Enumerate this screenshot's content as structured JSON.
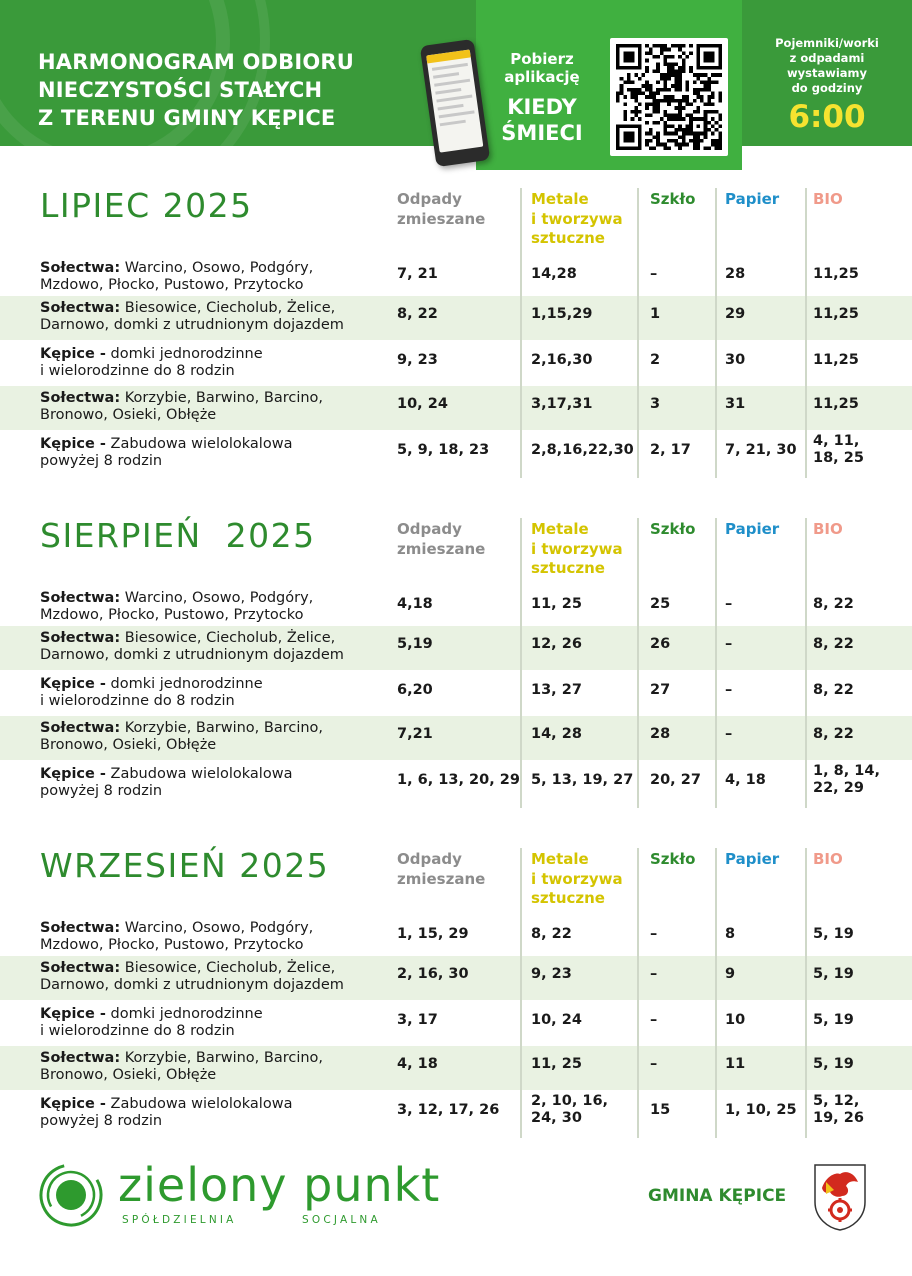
{
  "header": {
    "title_lines": [
      "HARMONOGRAM ODBIORU",
      "NIECZYSTOŚCI STAŁYCH",
      "Z TERENU GMINY KĘPICE"
    ],
    "app_prompt_line1": "Pobierz",
    "app_prompt_line2": "aplikację",
    "app_name_line1": "KIEDY",
    "app_name_line2": "ŚMIECI",
    "pickup_lines": [
      "Pojemniki/worki",
      "z odpadami",
      "wystawiamy",
      "do godziny"
    ],
    "pickup_time": "6:00"
  },
  "columns": {
    "mixed": [
      "Odpady",
      "zmieszane"
    ],
    "metals": [
      "Metale",
      "i tworzywa",
      "sztuczne"
    ],
    "glass": [
      "Szkło"
    ],
    "paper": [
      "Papier"
    ],
    "bio": [
      "BIO"
    ]
  },
  "colors": {
    "header_green": "#3a9a3a",
    "app_green": "#40b040",
    "title_green": "#2e8b2e",
    "mixed": "#8c8c8c",
    "metals": "#d4c400",
    "glass": "#2e8b2e",
    "paper": "#1f8fc9",
    "bio": "#f09a8a",
    "time_yellow": "#f5e330",
    "row_shade": "#e9f2e2"
  },
  "months": [
    {
      "title": "LIPIEC 2025",
      "rows": [
        {
          "loc_bold": "Sołectwa:",
          "loc1": " Warcino, Osowo, Podgóry,",
          "loc2": "Mzdowo, Płocko, Pustowo, Przytocko",
          "mixed": [
            "7, 21"
          ],
          "metals": [
            "14,28"
          ],
          "glass": [
            "–"
          ],
          "paper": [
            "28"
          ],
          "bio": [
            "11,25"
          ]
        },
        {
          "loc_bold": "Sołectwa:",
          "loc1": " Biesowice, Ciecholub, Żelice,",
          "loc2": "Darnowo, domki z utrudnionym dojazdem",
          "mixed": [
            "8, 22"
          ],
          "metals": [
            "1,15,29"
          ],
          "glass": [
            "1"
          ],
          "paper": [
            "29"
          ],
          "bio": [
            "11,25"
          ]
        },
        {
          "loc_bold": "Kępice -",
          "loc1": " domki jednorodzinne",
          "loc2": "i wielorodzinne do 8 rodzin",
          "mixed": [
            "9, 23"
          ],
          "metals": [
            "2,16,30"
          ],
          "glass": [
            "2"
          ],
          "paper": [
            "30"
          ],
          "bio": [
            "11,25"
          ]
        },
        {
          "loc_bold": "Sołectwa:",
          "loc1": " Korzybie, Barwino, Barcino,",
          "loc2": "Bronowo, Osieki, Obłęże",
          "mixed": [
            "10, 24"
          ],
          "metals": [
            "3,17,31"
          ],
          "glass": [
            "3"
          ],
          "paper": [
            "31"
          ],
          "bio": [
            "11,25"
          ]
        },
        {
          "loc_bold": "Kępice -",
          "loc1": " Zabudowa wielolokalowa",
          "loc2": "powyżej 8 rodzin",
          "mixed": [
            "5, 9, 18, 23"
          ],
          "metals": [
            "2,8,16,22,30"
          ],
          "glass": [
            "2, 17"
          ],
          "paper": [
            "7, 21, 30"
          ],
          "bio": [
            "4, 11,",
            "18, 25"
          ]
        }
      ]
    },
    {
      "title": "SIERPIEŃ  2025",
      "rows": [
        {
          "loc_bold": "Sołectwa:",
          "loc1": " Warcino, Osowo, Podgóry,",
          "loc2": "Mzdowo, Płocko, Pustowo, Przytocko",
          "mixed": [
            "4,18"
          ],
          "metals": [
            "11, 25"
          ],
          "glass": [
            "25"
          ],
          "paper": [
            "–"
          ],
          "bio": [
            "8, 22"
          ]
        },
        {
          "loc_bold": "Sołectwa:",
          "loc1": " Biesowice, Ciecholub, Żelice,",
          "loc2": "Darnowo, domki z utrudnionym dojazdem",
          "mixed": [
            "5,19"
          ],
          "metals": [
            "12, 26"
          ],
          "glass": [
            "26"
          ],
          "paper": [
            "–"
          ],
          "bio": [
            "8, 22"
          ]
        },
        {
          "loc_bold": "Kępice -",
          "loc1": " domki jednorodzinne",
          "loc2": "i wielorodzinne do 8 rodzin",
          "mixed": [
            "6,20"
          ],
          "metals": [
            "13, 27"
          ],
          "glass": [
            "27"
          ],
          "paper": [
            "–"
          ],
          "bio": [
            "8, 22"
          ]
        },
        {
          "loc_bold": "Sołectwa:",
          "loc1": " Korzybie, Barwino, Barcino,",
          "loc2": "Bronowo, Osieki, Obłęże",
          "mixed": [
            "7,21"
          ],
          "metals": [
            "14, 28"
          ],
          "glass": [
            "28"
          ],
          "paper": [
            "–"
          ],
          "bio": [
            "8, 22"
          ]
        },
        {
          "loc_bold": "Kępice -",
          "loc1": " Zabudowa wielolokalowa",
          "loc2": "powyżej 8 rodzin",
          "mixed": [
            "1, 6, 13, 20, 29"
          ],
          "metals": [
            "5, 13, 19, 27"
          ],
          "glass": [
            "20, 27"
          ],
          "paper": [
            "4, 18"
          ],
          "bio": [
            "1, 8, 14,",
            "22, 29"
          ]
        }
      ]
    },
    {
      "title": "WRZESIEŃ 2025",
      "rows": [
        {
          "loc_bold": "Sołectwa:",
          "loc1": " Warcino, Osowo, Podgóry,",
          "loc2": "Mzdowo, Płocko, Pustowo, Przytocko",
          "mixed": [
            "1, 15, 29"
          ],
          "metals": [
            "8, 22"
          ],
          "glass": [
            "–"
          ],
          "paper": [
            "8"
          ],
          "bio": [
            "5, 19"
          ]
        },
        {
          "loc_bold": "Sołectwa:",
          "loc1": " Biesowice, Ciecholub, Żelice,",
          "loc2": "Darnowo, domki z utrudnionym dojazdem",
          "mixed": [
            "2, 16, 30"
          ],
          "metals": [
            "9, 23"
          ],
          "glass": [
            "–"
          ],
          "paper": [
            "9"
          ],
          "bio": [
            "5, 19"
          ]
        },
        {
          "loc_bold": "Kępice -",
          "loc1": " domki jednorodzinne",
          "loc2": "i wielorodzinne do 8 rodzin",
          "mixed": [
            "3, 17"
          ],
          "metals": [
            "10, 24"
          ],
          "glass": [
            "–"
          ],
          "paper": [
            "10"
          ],
          "bio": [
            "5, 19"
          ]
        },
        {
          "loc_bold": "Sołectwa:",
          "loc1": " Korzybie, Barwino, Barcino,",
          "loc2": "Bronowo, Osieki, Obłęże",
          "mixed": [
            "4, 18"
          ],
          "metals": [
            "11, 25"
          ],
          "glass": [
            "–"
          ],
          "paper": [
            "11"
          ],
          "bio": [
            "5, 19"
          ]
        },
        {
          "loc_bold": "Kępice -",
          "loc1": " Zabudowa wielolokalowa",
          "loc2": "powyżej 8 rodzin",
          "mixed": [
            "3, 12, 17, 26"
          ],
          "metals": [
            "2, 10, 16,",
            "24, 30"
          ],
          "glass": [
            "15"
          ],
          "paper": [
            "1, 10, 25"
          ],
          "bio": [
            "5, 12,",
            "19, 26"
          ]
        }
      ]
    }
  ],
  "footer": {
    "logo_name": "zielony punkt",
    "logo_sub_left": "SPÓŁDZIELNIA",
    "logo_sub_right": "SOCJALNA",
    "municipality": "GMINA KĘPICE",
    "crest_icon": "coat-of-arms-icon"
  }
}
